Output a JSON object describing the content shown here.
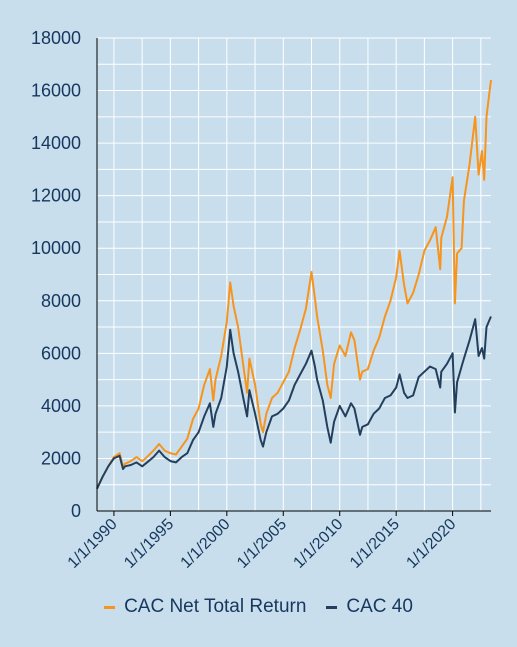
{
  "colors": {
    "background": "#c8deed",
    "grid": "#ffffff",
    "axis": "#000000",
    "text": "#17375e",
    "series": [
      "#f7941d",
      "#243f5c"
    ]
  },
  "chart_data": {
    "type": "line",
    "title": "",
    "xlabel": "",
    "ylabel": "",
    "ylim": [
      0,
      18000
    ],
    "yticks": [
      "0",
      "2000",
      "4000",
      "6000",
      "8000",
      "10000",
      "12000",
      "14000",
      "16000",
      "18000"
    ],
    "xlim": [
      1988.5,
      2023.4
    ],
    "xticks": [
      {
        "label": "1/1/1990",
        "year": 1990
      },
      {
        "label": "1/1/1995",
        "year": 1995
      },
      {
        "label": "1/1/2000",
        "year": 2000
      },
      {
        "label": "1/1/2005",
        "year": 2005
      },
      {
        "label": "1/1/2010",
        "year": 2010
      },
      {
        "label": "1/1/2015",
        "year": 2015
      },
      {
        "label": "1/1/2020",
        "year": 2020
      }
    ],
    "grid": true,
    "legend_position": "bottom",
    "series": [
      {
        "name": "CAC Net Total Return",
        "x": [
          1988.5,
          1989.0,
          1989.5,
          1990.0,
          1990.5,
          1990.8,
          1991.0,
          1991.5,
          1992.0,
          1992.5,
          1992.8,
          1993.5,
          1994.0,
          1994.5,
          1995.0,
          1995.5,
          1996.0,
          1996.5,
          1997.0,
          1997.5,
          1998.0,
          1998.5,
          1998.8,
          1999.0,
          1999.5,
          2000.0,
          2000.3,
          2000.6,
          2001.0,
          2001.5,
          2001.8,
          2002.0,
          2002.5,
          2003.0,
          2003.2,
          2003.5,
          2004.0,
          2004.5,
          2005.0,
          2005.5,
          2006.0,
          2006.5,
          2007.0,
          2007.5,
          2007.8,
          2008.0,
          2008.5,
          2008.9,
          2009.2,
          2009.5,
          2010.0,
          2010.5,
          2011.0,
          2011.3,
          2011.8,
          2012.0,
          2012.5,
          2013.0,
          2013.5,
          2014.0,
          2014.5,
          2015.0,
          2015.3,
          2015.7,
          2016.0,
          2016.5,
          2017.0,
          2017.5,
          2018.0,
          2018.5,
          2018.9,
          2019.0,
          2019.5,
          2020.0,
          2020.2,
          2020.4,
          2020.8,
          2021.0,
          2021.5,
          2022.0,
          2022.3,
          2022.6,
          2022.8,
          2023.0,
          2023.2,
          2023.4
        ],
        "values": [
          850,
          1300,
          1700,
          2050,
          2200,
          1700,
          1800,
          1900,
          2050,
          1900,
          2000,
          2300,
          2550,
          2300,
          2200,
          2150,
          2450,
          2750,
          3500,
          3900,
          4800,
          5400,
          4200,
          5000,
          5900,
          7200,
          8700,
          7800,
          7000,
          5400,
          4500,
          5800,
          4800,
          3300,
          3000,
          3700,
          4300,
          4500,
          4900,
          5300,
          6200,
          6900,
          7700,
          9100,
          8100,
          7400,
          6100,
          4800,
          4300,
          5600,
          6300,
          5900,
          6800,
          6500,
          5000,
          5300,
          5400,
          6100,
          6600,
          7400,
          8000,
          8900,
          9900,
          8600,
          7900,
          8300,
          9000,
          9900,
          10300,
          10800,
          9200,
          10400,
          11200,
          12700,
          7900,
          9800,
          10000,
          11800,
          13200,
          15000,
          12800,
          13700,
          12600,
          15000,
          15700,
          16400
        ]
      },
      {
        "name": "CAC 40",
        "x": [
          1988.5,
          1989.0,
          1989.5,
          1990.0,
          1990.5,
          1990.8,
          1991.0,
          1991.5,
          1992.0,
          1992.5,
          1992.8,
          1993.5,
          1994.0,
          1994.5,
          1995.0,
          1995.5,
          1996.0,
          1996.5,
          1997.0,
          1997.5,
          1998.0,
          1998.5,
          1998.8,
          1999.0,
          1999.5,
          2000.0,
          2000.3,
          2000.6,
          2001.0,
          2001.5,
          2001.8,
          2002.0,
          2002.5,
          2003.0,
          2003.2,
          2003.5,
          2004.0,
          2004.5,
          2005.0,
          2005.5,
          2006.0,
          2006.5,
          2007.0,
          2007.5,
          2007.8,
          2008.0,
          2008.5,
          2008.9,
          2009.2,
          2009.5,
          2010.0,
          2010.5,
          2011.0,
          2011.3,
          2011.8,
          2012.0,
          2012.5,
          2013.0,
          2013.5,
          2014.0,
          2014.5,
          2015.0,
          2015.3,
          2015.7,
          2016.0,
          2016.5,
          2017.0,
          2017.5,
          2018.0,
          2018.5,
          2018.9,
          2019.0,
          2019.5,
          2020.0,
          2020.2,
          2020.4,
          2020.8,
          2021.0,
          2021.5,
          2022.0,
          2022.3,
          2022.6,
          2022.8,
          2023.0,
          2023.2,
          2023.4
        ],
        "values": [
          850,
          1300,
          1700,
          2000,
          2100,
          1600,
          1700,
          1750,
          1850,
          1700,
          1800,
          2050,
          2300,
          2050,
          1900,
          1850,
          2050,
          2200,
          2700,
          3000,
          3600,
          4100,
          3200,
          3700,
          4300,
          5500,
          6900,
          6000,
          5300,
          4200,
          3600,
          4600,
          3700,
          2700,
          2450,
          3000,
          3600,
          3700,
          3900,
          4200,
          4800,
          5200,
          5600,
          6100,
          5500,
          5000,
          4200,
          3200,
          2600,
          3400,
          4000,
          3600,
          4100,
          3900,
          2900,
          3200,
          3300,
          3700,
          3900,
          4300,
          4400,
          4700,
          5200,
          4500,
          4300,
          4400,
          5100,
          5300,
          5500,
          5400,
          4700,
          5300,
          5600,
          6000,
          3750,
          4900,
          5500,
          5800,
          6500,
          7300,
          5900,
          6200,
          5800,
          7000,
          7200,
          7400
        ]
      }
    ]
  }
}
